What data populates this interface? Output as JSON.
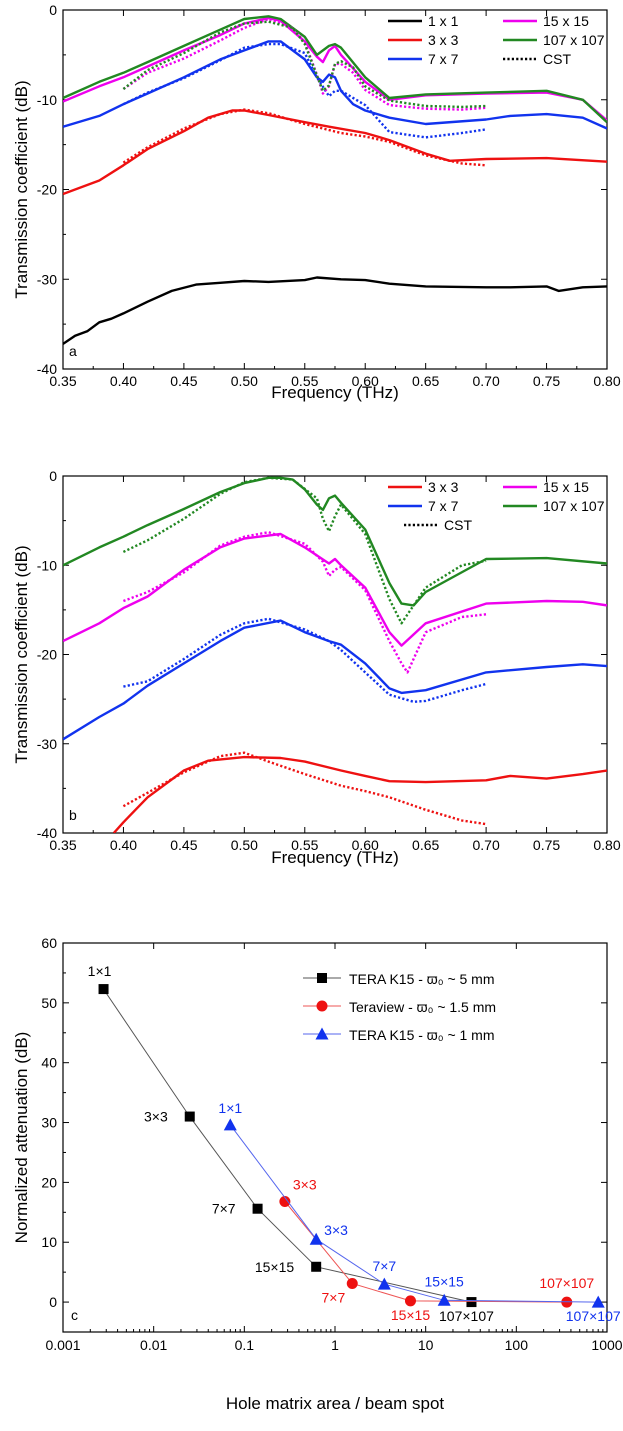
{
  "chart_data": [
    {
      "panel": "a",
      "type": "line",
      "xlabel": "Frequency (THz)",
      "ylabel": "Transmission coefficient (dB)",
      "xlim": [
        0.35,
        0.8
      ],
      "ylim": [
        -40,
        0
      ],
      "xticks": [
        "0.35",
        "0.40",
        "0.45",
        "0.50",
        "0.55",
        "0.60",
        "0.65",
        "0.70",
        "0.75",
        "0.80"
      ],
      "yticks": [
        "0",
        "-10",
        "-20",
        "-30",
        "-40"
      ],
      "legend": {
        "placement": "top-right",
        "entries": [
          {
            "label": "1 x 1",
            "color": "#000000",
            "style": "solid"
          },
          {
            "label": "15 x 15",
            "color": "#ee00ee",
            "style": "solid"
          },
          {
            "label": "3 x 3",
            "color": "#ee1111",
            "style": "solid"
          },
          {
            "label": "107 x 107",
            "color": "#228822",
            "style": "solid"
          },
          {
            "label": "7 x 7",
            "color": "#1133ee",
            "style": "solid"
          },
          {
            "label": "CST",
            "color": "#000000",
            "style": "dotted"
          }
        ]
      },
      "series": [
        {
          "name": "1 x 1",
          "color": "#000000",
          "style": "solid",
          "x": [
            0.35,
            0.36,
            0.37,
            0.38,
            0.39,
            0.4,
            0.42,
            0.44,
            0.46,
            0.48,
            0.5,
            0.52,
            0.55,
            0.56,
            0.58,
            0.6,
            0.62,
            0.65,
            0.7,
            0.72,
            0.75,
            0.76,
            0.78,
            0.8
          ],
          "y": [
            -37.2,
            -36.3,
            -35.8,
            -34.8,
            -34.4,
            -33.8,
            -32.5,
            -31.3,
            -30.6,
            -30.4,
            -30.2,
            -30.3,
            -30.1,
            -29.8,
            -30.0,
            -30.1,
            -30.5,
            -30.8,
            -30.9,
            -30.9,
            -30.8,
            -31.3,
            -30.9,
            -30.8
          ]
        },
        {
          "name": "3 x 3",
          "color": "#ee1111",
          "style": "solid",
          "x": [
            0.35,
            0.38,
            0.4,
            0.42,
            0.45,
            0.47,
            0.49,
            0.5,
            0.52,
            0.55,
            0.57,
            0.6,
            0.62,
            0.65,
            0.67,
            0.7,
            0.75,
            0.8
          ],
          "y": [
            -20.5,
            -19.0,
            -17.3,
            -15.5,
            -13.5,
            -12.0,
            -11.2,
            -11.2,
            -11.7,
            -12.5,
            -13.0,
            -13.7,
            -14.5,
            -16.0,
            -16.8,
            -16.6,
            -16.5,
            -16.9
          ]
        },
        {
          "name": "7 x 7",
          "color": "#1133ee",
          "style": "solid",
          "x": [
            0.35,
            0.38,
            0.4,
            0.42,
            0.45,
            0.48,
            0.5,
            0.52,
            0.53,
            0.55,
            0.56,
            0.565,
            0.57,
            0.575,
            0.58,
            0.59,
            0.6,
            0.62,
            0.65,
            0.7,
            0.72,
            0.75,
            0.78,
            0.8
          ],
          "y": [
            -13.0,
            -11.8,
            -10.5,
            -9.3,
            -7.5,
            -5.5,
            -4.5,
            -3.5,
            -3.5,
            -5.5,
            -7.5,
            -8.0,
            -7.2,
            -7.5,
            -9.0,
            -10.5,
            -11.2,
            -12.0,
            -12.7,
            -12.2,
            -11.8,
            -11.6,
            -12.0,
            -13.2
          ]
        },
        {
          "name": "15 x 15",
          "color": "#ee00ee",
          "style": "solid",
          "x": [
            0.35,
            0.38,
            0.4,
            0.42,
            0.45,
            0.48,
            0.5,
            0.52,
            0.53,
            0.55,
            0.56,
            0.565,
            0.57,
            0.575,
            0.58,
            0.6,
            0.62,
            0.65,
            0.7,
            0.75,
            0.78,
            0.8
          ],
          "y": [
            -10.2,
            -8.5,
            -7.5,
            -6.3,
            -4.5,
            -2.8,
            -1.5,
            -0.9,
            -1.2,
            -3.5,
            -5.2,
            -5.8,
            -4.5,
            -4.0,
            -5.0,
            -8.0,
            -10.0,
            -9.5,
            -9.3,
            -9.2,
            -10.0,
            -12.3
          ]
        },
        {
          "name": "107 x 107",
          "color": "#228822",
          "style": "solid",
          "x": [
            0.35,
            0.38,
            0.4,
            0.42,
            0.45,
            0.48,
            0.5,
            0.52,
            0.53,
            0.55,
            0.56,
            0.57,
            0.575,
            0.58,
            0.6,
            0.62,
            0.65,
            0.7,
            0.75,
            0.78,
            0.8
          ],
          "y": [
            -9.8,
            -8.0,
            -7.0,
            -5.8,
            -4.0,
            -2.2,
            -1.0,
            -0.7,
            -1.0,
            -3.0,
            -5.0,
            -4.0,
            -3.8,
            -4.2,
            -7.5,
            -9.8,
            -9.4,
            -9.2,
            -9.0,
            -10.0,
            -12.5
          ]
        },
        {
          "name": "CST",
          "color": "#ee1111",
          "style": "dotted",
          "x": [
            0.4,
            0.42,
            0.45,
            0.48,
            0.5,
            0.52,
            0.55,
            0.58,
            0.6,
            0.62,
            0.65,
            0.68,
            0.7
          ],
          "y": [
            -17.0,
            -15.3,
            -13.2,
            -11.6,
            -11.1,
            -11.5,
            -12.7,
            -13.7,
            -14.1,
            -14.7,
            -16.2,
            -17.1,
            -17.3
          ]
        },
        {
          "name": "CST",
          "color": "#1133ee",
          "style": "dotted",
          "x": [
            0.4,
            0.42,
            0.45,
            0.48,
            0.5,
            0.52,
            0.53,
            0.55,
            0.56,
            0.57,
            0.575,
            0.58,
            0.6,
            0.62,
            0.65,
            0.68,
            0.7
          ],
          "y": [
            -10.5,
            -9.2,
            -7.6,
            -5.6,
            -4.2,
            -3.8,
            -3.8,
            -4.8,
            -7.5,
            -9.6,
            -9.0,
            -9.0,
            -10.6,
            -13.6,
            -14.2,
            -13.7,
            -13.3
          ]
        },
        {
          "name": "CST",
          "color": "#ee00ee",
          "style": "dotted",
          "x": [
            0.4,
            0.42,
            0.45,
            0.48,
            0.5,
            0.52,
            0.54,
            0.55,
            0.56,
            0.565,
            0.57,
            0.575,
            0.58,
            0.59,
            0.6,
            0.62,
            0.65,
            0.68,
            0.7
          ],
          "y": [
            -8.8,
            -7.0,
            -5.4,
            -3.4,
            -2.0,
            -1.0,
            -2.0,
            -3.6,
            -7.2,
            -9.3,
            -8.5,
            -6.0,
            -6.0,
            -7.0,
            -8.9,
            -10.6,
            -11.0,
            -11.1,
            -10.9
          ]
        },
        {
          "name": "CST",
          "color": "#228822",
          "style": "dotted",
          "x": [
            0.4,
            0.42,
            0.45,
            0.48,
            0.5,
            0.52,
            0.54,
            0.55,
            0.56,
            0.565,
            0.57,
            0.575,
            0.58,
            0.59,
            0.6,
            0.62,
            0.65,
            0.68,
            0.7
          ],
          "y": [
            -8.8,
            -6.7,
            -4.8,
            -2.5,
            -1.5,
            -1.3,
            -2.0,
            -3.8,
            -7.3,
            -9.0,
            -8.4,
            -6.0,
            -5.7,
            -6.4,
            -8.5,
            -10.1,
            -10.7,
            -10.8,
            -10.7
          ]
        }
      ]
    },
    {
      "panel": "b",
      "type": "line",
      "xlabel": "Frequency (THz)",
      "ylabel": "Transmission coefficient (dB)",
      "xlim": [
        0.35,
        0.8
      ],
      "ylim": [
        -40,
        0
      ],
      "xticks": [
        "0.35",
        "0.40",
        "0.45",
        "0.50",
        "0.55",
        "0.60",
        "0.65",
        "0.70",
        "0.75",
        "0.80"
      ],
      "yticks": [
        "0",
        "-10",
        "-20",
        "-30",
        "-40"
      ],
      "legend": {
        "placement": "top-right",
        "entries": [
          {
            "label": "3 x 3",
            "color": "#ee1111",
            "style": "solid"
          },
          {
            "label": "15 x 15",
            "color": "#ee00ee",
            "style": "solid"
          },
          {
            "label": "7 x 7",
            "color": "#1133ee",
            "style": "solid"
          },
          {
            "label": "107 x 107",
            "color": "#228822",
            "style": "solid"
          },
          {
            "label": "CST",
            "color": "#000000",
            "style": "dotted"
          }
        ]
      },
      "series": [
        {
          "name": "3 x 3",
          "color": "#ee1111",
          "style": "solid",
          "x": [
            0.392,
            0.4,
            0.42,
            0.45,
            0.47,
            0.5,
            0.53,
            0.55,
            0.58,
            0.6,
            0.62,
            0.65,
            0.7,
            0.72,
            0.75,
            0.78,
            0.8
          ],
          "y": [
            -40.0,
            -38.8,
            -36.0,
            -33.0,
            -31.9,
            -31.5,
            -31.6,
            -32.0,
            -33.0,
            -33.6,
            -34.2,
            -34.3,
            -34.1,
            -33.6,
            -33.9,
            -33.4,
            -33.0
          ]
        },
        {
          "name": "7 x 7",
          "color": "#1133ee",
          "style": "solid",
          "x": [
            0.35,
            0.38,
            0.4,
            0.42,
            0.45,
            0.48,
            0.5,
            0.53,
            0.55,
            0.57,
            0.58,
            0.6,
            0.62,
            0.63,
            0.65,
            0.7,
            0.75,
            0.78,
            0.8
          ],
          "y": [
            -29.5,
            -27.0,
            -25.5,
            -23.5,
            -21.0,
            -18.5,
            -17.0,
            -16.2,
            -17.5,
            -18.5,
            -18.9,
            -21.0,
            -23.8,
            -24.3,
            -24.0,
            -22.0,
            -21.4,
            -21.1,
            -21.3
          ]
        },
        {
          "name": "15 x 15",
          "color": "#ee00ee",
          "style": "solid",
          "x": [
            0.35,
            0.38,
            0.4,
            0.42,
            0.45,
            0.48,
            0.5,
            0.53,
            0.55,
            0.57,
            0.575,
            0.58,
            0.6,
            0.62,
            0.63,
            0.65,
            0.7,
            0.75,
            0.78,
            0.8
          ],
          "y": [
            -18.5,
            -16.5,
            -14.8,
            -13.5,
            -10.5,
            -8.0,
            -7.0,
            -6.5,
            -8.0,
            -9.8,
            -9.3,
            -10.0,
            -12.5,
            -17.5,
            -19.0,
            -16.5,
            -14.3,
            -14.0,
            -14.1,
            -14.5
          ]
        },
        {
          "name": "107 x 107",
          "color": "#228822",
          "style": "solid",
          "x": [
            0.35,
            0.38,
            0.4,
            0.42,
            0.45,
            0.48,
            0.5,
            0.52,
            0.53,
            0.54,
            0.55,
            0.56,
            0.565,
            0.57,
            0.575,
            0.58,
            0.6,
            0.62,
            0.63,
            0.64,
            0.65,
            0.7,
            0.75,
            0.8
          ],
          "y": [
            -10.0,
            -8.0,
            -6.8,
            -5.5,
            -3.7,
            -1.8,
            -0.8,
            -0.2,
            -0.2,
            -0.4,
            -1.5,
            -3.2,
            -3.8,
            -2.5,
            -2.2,
            -3.0,
            -6.0,
            -12.0,
            -14.3,
            -14.5,
            -13.0,
            -9.3,
            -9.2,
            -9.8
          ]
        },
        {
          "name": "CST",
          "color": "#ee1111",
          "style": "dotted",
          "x": [
            0.4,
            0.42,
            0.45,
            0.48,
            0.5,
            0.52,
            0.55,
            0.58,
            0.6,
            0.62,
            0.65,
            0.68,
            0.7
          ],
          "y": [
            -37.0,
            -35.5,
            -33.2,
            -31.4,
            -31.0,
            -32.0,
            -33.4,
            -34.7,
            -35.3,
            -36.0,
            -37.4,
            -38.6,
            -39.0
          ]
        },
        {
          "name": "CST",
          "color": "#1133ee",
          "style": "dotted",
          "x": [
            0.4,
            0.42,
            0.45,
            0.48,
            0.5,
            0.52,
            0.55,
            0.57,
            0.58,
            0.6,
            0.62,
            0.64,
            0.65,
            0.68,
            0.7
          ],
          "y": [
            -23.6,
            -23.0,
            -20.5,
            -17.8,
            -16.5,
            -16.0,
            -17.2,
            -18.5,
            -19.5,
            -22.0,
            -24.5,
            -25.3,
            -25.2,
            -24.0,
            -23.3
          ]
        },
        {
          "name": "CST",
          "color": "#ee00ee",
          "style": "dotted",
          "x": [
            0.4,
            0.42,
            0.45,
            0.48,
            0.5,
            0.52,
            0.55,
            0.565,
            0.57,
            0.575,
            0.58,
            0.6,
            0.62,
            0.63,
            0.635,
            0.65,
            0.68,
            0.7
          ],
          "y": [
            -14.0,
            -13.0,
            -10.8,
            -7.8,
            -6.8,
            -6.3,
            -7.6,
            -9.6,
            -11.2,
            -10.5,
            -10.2,
            -12.8,
            -18.5,
            -21.0,
            -22.0,
            -17.5,
            -15.8,
            -15.5
          ]
        },
        {
          "name": "CST",
          "color": "#228822",
          "style": "dotted",
          "x": [
            0.4,
            0.42,
            0.45,
            0.48,
            0.5,
            0.52,
            0.54,
            0.56,
            0.565,
            0.57,
            0.575,
            0.58,
            0.6,
            0.62,
            0.63,
            0.64,
            0.65,
            0.68,
            0.7
          ],
          "y": [
            -8.5,
            -7.2,
            -4.8,
            -2.0,
            -0.7,
            -0.2,
            -0.4,
            -2.5,
            -4.8,
            -6.2,
            -4.5,
            -3.2,
            -6.5,
            -13.8,
            -16.5,
            -14.5,
            -12.5,
            -10.0,
            -9.5
          ]
        }
      ]
    },
    {
      "panel": "c",
      "type": "scatter",
      "xlabel": "Hole matrix area / beam spot",
      "ylabel": "Normalized attenuation (dB)",
      "xscale": "log",
      "xlim": [
        0.001,
        1000
      ],
      "ylim": [
        -5,
        60
      ],
      "xticks": [
        "0.001",
        "0.01",
        "0.1",
        "1",
        "10",
        "100",
        "1000"
      ],
      "yticks": [
        "0",
        "10",
        "20",
        "30",
        "40",
        "50",
        "60"
      ],
      "legend": {
        "placement": "top-right"
      },
      "series": [
        {
          "name": "TERA K15 - ϖ₀ ~ 5 mm",
          "color": "#000000",
          "line_color": "#555555",
          "marker": "square",
          "x": [
            0.0028,
            0.025,
            0.14,
            0.62,
            32
          ],
          "y": [
            52.3,
            31.0,
            15.6,
            5.9,
            0.0
          ],
          "labels": [
            "1×1",
            "3×3",
            "7×7",
            "15×15",
            "107×107"
          ]
        },
        {
          "name": "Teraview - ϖ₀ ~ 1.5 mm",
          "color": "#ee1111",
          "line_color": "#ee5555",
          "marker": "circle",
          "x": [
            0.28,
            1.55,
            6.8,
            360
          ],
          "y": [
            16.8,
            3.1,
            0.2,
            0.0
          ],
          "labels": [
            "3×3",
            "7×7",
            "15×15",
            "107×107"
          ]
        },
        {
          "name": "TERA K15 - ϖ₀ ~ 1 mm",
          "color": "#1133ee",
          "line_color": "#5566ee",
          "marker": "triangle",
          "x": [
            0.07,
            0.62,
            3.5,
            16,
            800
          ],
          "y": [
            29.6,
            10.5,
            3.0,
            0.3,
            0.0
          ],
          "labels": [
            "1×1",
            "3×3",
            "7×7",
            "15×15",
            "107×107"
          ]
        }
      ]
    }
  ]
}
